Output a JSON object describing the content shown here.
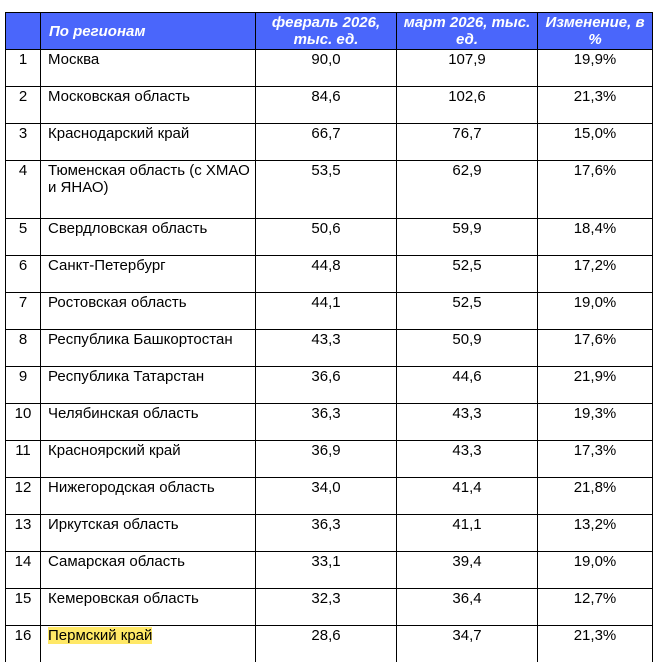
{
  "header": {
    "index": "",
    "region": "По регионам",
    "feb": "февраль 2026, тыс. ед.",
    "mar": "март 2026, тыс. ед.",
    "change": "Изменение, в %"
  },
  "rows": [
    {
      "n": "1",
      "region": "Москва",
      "feb": "90,0",
      "mar": "107,9",
      "change": "19,9%"
    },
    {
      "n": "2",
      "region": "Московская область",
      "feb": "84,6",
      "mar": "102,6",
      "change": "21,3%"
    },
    {
      "n": "3",
      "region": "Краснодарский край",
      "feb": "66,7",
      "mar": "76,7",
      "change": "15,0%"
    },
    {
      "n": "4",
      "region": "Тюменская область (с ХМАО и ЯНАО)",
      "feb": "53,5",
      "mar": "62,9",
      "change": "17,6%"
    },
    {
      "n": "5",
      "region": "Свердловская область",
      "feb": "50,6",
      "mar": "59,9",
      "change": "18,4%"
    },
    {
      "n": "6",
      "region": "Санкт-Петербург",
      "feb": "44,8",
      "mar": "52,5",
      "change": "17,2%"
    },
    {
      "n": "7",
      "region": "Ростовская область",
      "feb": "44,1",
      "mar": "52,5",
      "change": "19,0%"
    },
    {
      "n": "8",
      "region": "Республика Башкортостан",
      "feb": "43,3",
      "mar": "50,9",
      "change": "17,6%"
    },
    {
      "n": "9",
      "region": "Республика Татарстан",
      "feb": "36,6",
      "mar": "44,6",
      "change": "21,9%"
    },
    {
      "n": "10",
      "region": "Челябинская область",
      "feb": "36,3",
      "mar": "43,3",
      "change": "19,3%"
    },
    {
      "n": "11",
      "region": "Красноярский край",
      "feb": "36,9",
      "mar": "43,3",
      "change": "17,3%"
    },
    {
      "n": "12",
      "region": "Нижегородская область",
      "feb": "34,0",
      "mar": "41,4",
      "change": "21,8%"
    },
    {
      "n": "13",
      "region": "Иркутская область",
      "feb": "36,3",
      "mar": "41,1",
      "change": "13,2%"
    },
    {
      "n": "14",
      "region": "Самарская область",
      "feb": "33,1",
      "mar": "39,4",
      "change": "19,0%"
    },
    {
      "n": "15",
      "region": "Кемеровская область",
      "feb": "32,3",
      "mar": "36,4",
      "change": "12,7%"
    },
    {
      "n": "16",
      "region": "Пермский край",
      "feb": "28,6",
      "mar": "34,7",
      "change": "21,3%",
      "highlight": true
    }
  ],
  "colors": {
    "header_bg": "#4a66fb",
    "highlight": "#ffe866"
  }
}
